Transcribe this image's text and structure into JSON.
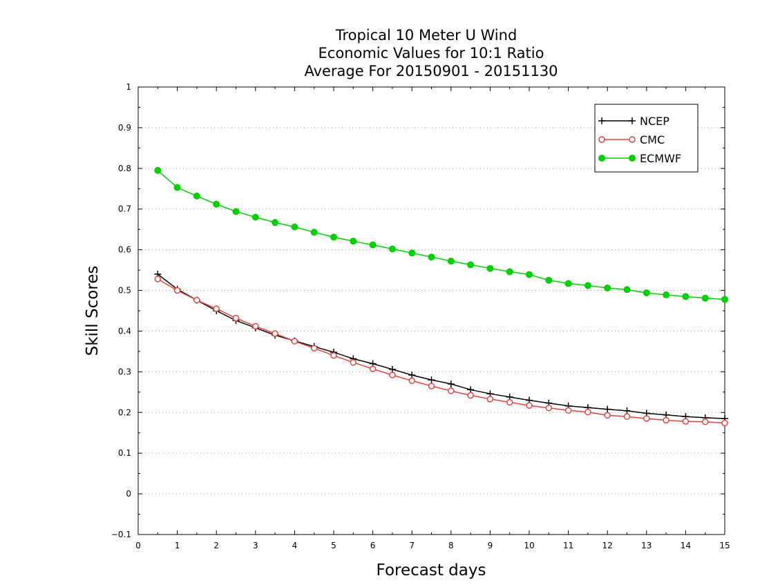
{
  "chart_data": {
    "type": "line",
    "title_lines": [
      "Tropical 10 Meter U Wind",
      "Economic Values for 10:1 Ratio",
      "Average For 20150901 - 20151130"
    ],
    "xlabel": "Forecast days",
    "ylabel": "Skill Scores",
    "xlim": [
      0,
      15
    ],
    "ylim": [
      -0.1,
      1
    ],
    "xticks": [
      "0",
      "1",
      "2",
      "3",
      "4",
      "5",
      "6",
      "7",
      "8",
      "9",
      "10",
      "11",
      "12",
      "13",
      "14",
      "15"
    ],
    "yticks": [
      "−0.1",
      "0",
      "0.1",
      "0.2",
      "0.3",
      "0.4",
      "0.5",
      "0.6",
      "0.7",
      "0.8",
      "0.9",
      "1"
    ],
    "grid": "horizontal dotted",
    "legend_position": "top-right",
    "x": [
      0.5,
      1,
      1.5,
      2,
      2.5,
      3,
      3.5,
      4,
      4.5,
      5,
      5.5,
      6,
      6.5,
      7,
      7.5,
      8,
      8.5,
      9,
      9.5,
      10,
      10.5,
      11,
      11.5,
      12,
      12.5,
      13,
      13.5,
      14,
      14.5,
      15
    ],
    "series": [
      {
        "name": "NCEP",
        "color": "#000000",
        "marker": "plus",
        "values": [
          0.54,
          0.503,
          0.476,
          0.45,
          0.426,
          0.408,
          0.39,
          0.376,
          0.362,
          0.348,
          0.332,
          0.32,
          0.306,
          0.292,
          0.28,
          0.27,
          0.256,
          0.246,
          0.238,
          0.23,
          0.223,
          0.216,
          0.212,
          0.208,
          0.204,
          0.198,
          0.194,
          0.19,
          0.187,
          0.185
        ]
      },
      {
        "name": "CMC",
        "color": "#e8413c",
        "marker": "open-circle",
        "values": [
          0.528,
          0.5,
          0.476,
          0.455,
          0.432,
          0.412,
          0.394,
          0.375,
          0.358,
          0.34,
          0.323,
          0.307,
          0.292,
          0.278,
          0.265,
          0.253,
          0.242,
          0.233,
          0.225,
          0.217,
          0.211,
          0.205,
          0.201,
          0.193,
          0.19,
          0.185,
          0.181,
          0.178,
          0.177,
          0.174
        ]
      },
      {
        "name": "ECMWF",
        "color": "#00d000",
        "marker": "filled-circle",
        "values": [
          0.795,
          0.753,
          0.732,
          0.712,
          0.694,
          0.68,
          0.667,
          0.656,
          0.643,
          0.631,
          0.621,
          0.612,
          0.602,
          0.592,
          0.582,
          0.572,
          0.563,
          0.554,
          0.546,
          0.539,
          0.525,
          0.517,
          0.512,
          0.506,
          0.502,
          0.494,
          0.489,
          0.485,
          0.481,
          0.478
        ]
      }
    ]
  }
}
